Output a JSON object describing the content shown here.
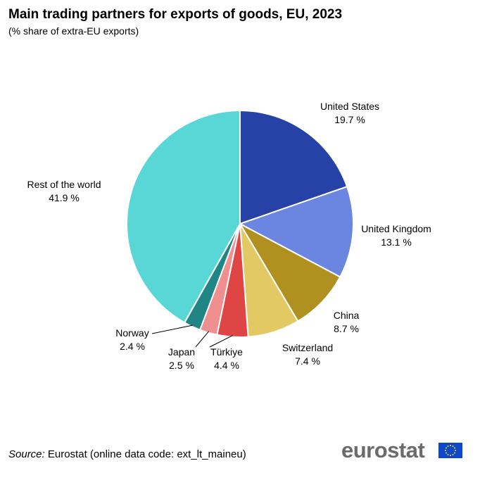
{
  "header": {
    "title": "Main trading partners for exports of goods, EU, 2023",
    "subtitle": "(% share of extra-EU exports)"
  },
  "chart_data": {
    "type": "pie",
    "title": "Main trading partners for exports of goods, EU, 2023",
    "subtitle": "(% share of extra-EU exports)",
    "start_angle": "12 o'clock, clockwise",
    "slices": [
      {
        "label": "United States",
        "value": 19.7,
        "value_label": "19.7 %",
        "color": "#2642a6"
      },
      {
        "label": "United Kingdom",
        "value": 13.1,
        "value_label": "13.1 %",
        "color": "#6b86e0"
      },
      {
        "label": "China",
        "value": 8.7,
        "value_label": "8.7 %",
        "color": "#b0901f"
      },
      {
        "label": "Switzerland",
        "value": 7.4,
        "value_label": "7.4 %",
        "color": "#e3c964"
      },
      {
        "label": "Türkiye",
        "value": 4.4,
        "value_label": "4.4 %",
        "color": "#e04545"
      },
      {
        "label": "Japan",
        "value": 2.5,
        "value_label": "2.5 %",
        "color": "#ef8f8f"
      },
      {
        "label": "Norway",
        "value": 2.4,
        "value_label": "2.4 %",
        "color": "#1f8585"
      },
      {
        "label": "Rest of the world",
        "value": 41.9,
        "value_label": "41.9 %",
        "color": "#59d6d6"
      }
    ]
  },
  "footer": {
    "source_prefix": "Source:",
    "source_text": "Eurostat (online data code: ext_lt_maineu)",
    "logo_text": "eurostat"
  }
}
